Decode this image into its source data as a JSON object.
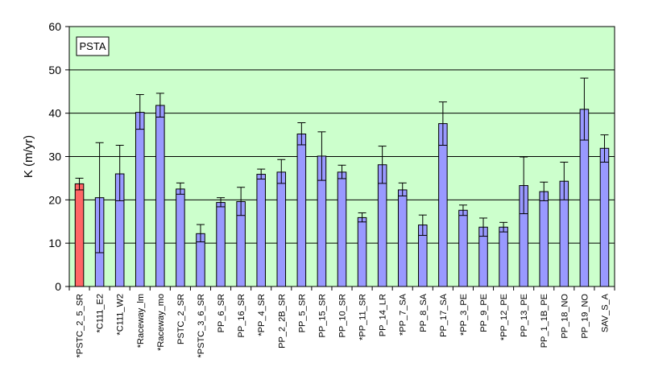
{
  "chart_data": {
    "type": "bar",
    "ylabel": "K (m/yr)",
    "ylim": [
      0,
      60
    ],
    "yticks": [
      0,
      10,
      20,
      30,
      40,
      50,
      60
    ],
    "grid": true,
    "annotation": "PSTA",
    "colors": {
      "plot_background": "#ccffcc",
      "bar_default": "#9999ff",
      "bar_highlight": "#ff6666",
      "edge": "#000000"
    },
    "categories": [
      "*PSTC_2_5_SR",
      "*C111_E2",
      "*C111_W2",
      "*Raceway_lm",
      "*Raceway_mo",
      "PSTC_2_SR",
      "*PSTC_3_6_SR",
      "PP_6_SR",
      "PP_16_SR",
      "*PP_4_SR",
      "PP_2_2B_SR",
      "PP_5_SR",
      "PP_15_SR",
      "PP_10_SR",
      "*PP_11_SR",
      "PP_14_LR",
      "*PP_7_SA",
      "PP_8_SA",
      "PP_17_SA",
      "*PP_3_PE",
      "PP_9_PE",
      "*PP_12_PE",
      "PP_13_PE",
      "PP_1_1B_PE",
      "PP_18_NO",
      "PP_19_NO",
      "SAV_S_A"
    ],
    "values": [
      23.7,
      20.5,
      26.0,
      40.2,
      41.8,
      22.5,
      12.2,
      19.4,
      19.6,
      25.9,
      26.4,
      35.2,
      30.1,
      26.4,
      15.9,
      28.1,
      22.3,
      14.2,
      37.6,
      17.6,
      13.7,
      13.7,
      23.3,
      21.9,
      24.3,
      40.9,
      31.9
    ],
    "error_low": [
      22.3,
      7.8,
      19.8,
      36.3,
      39.1,
      21.3,
      10.3,
      18.4,
      16.4,
      24.8,
      23.8,
      32.7,
      24.5,
      24.9,
      14.9,
      23.8,
      20.9,
      11.8,
      32.6,
      16.4,
      11.6,
      12.6,
      16.8,
      19.8,
      20.0,
      33.8,
      28.7
    ],
    "error_high": [
      25.0,
      33.2,
      32.6,
      44.3,
      44.6,
      23.9,
      14.3,
      20.5,
      22.9,
      27.1,
      29.3,
      37.8,
      35.7,
      28.0,
      17.0,
      32.4,
      23.9,
      16.5,
      42.6,
      18.8,
      15.8,
      14.8,
      29.9,
      24.1,
      28.7,
      48.1,
      35.0
    ],
    "highlight_index": 0
  }
}
